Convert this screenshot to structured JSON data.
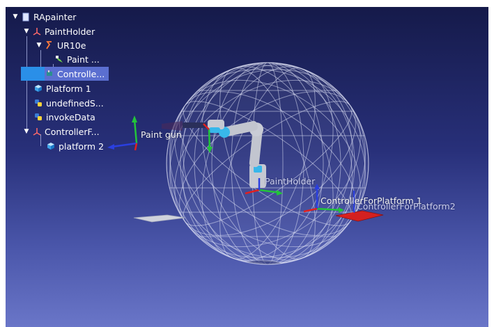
{
  "tree": {
    "root_label": "RApainter",
    "items": [
      {
        "label": "PaintHolder"
      },
      {
        "label": "UR10e"
      },
      {
        "label": "Paint ..."
      },
      {
        "label": "Controlle..."
      },
      {
        "label": "Platform 1"
      },
      {
        "label": "undefinedS..."
      },
      {
        "label": "invokeData"
      },
      {
        "label": "ControllerF..."
      },
      {
        "label": "platform 2"
      }
    ]
  },
  "scene_labels": {
    "paint_gun": "Paint gun",
    "paint_holder": "PaintHolder",
    "controller_platform_1": "ControllerForPlatform 1",
    "controller_platform_2": "ControllerForPlatform2"
  },
  "colors": {
    "bg_top": "#151a4a",
    "bg_bottom": "#6a76c8",
    "selection": "#5b6fd0",
    "axis_red": "#e02020",
    "axis_green": "#22c43a",
    "axis_blue": "#2a3fe0"
  }
}
